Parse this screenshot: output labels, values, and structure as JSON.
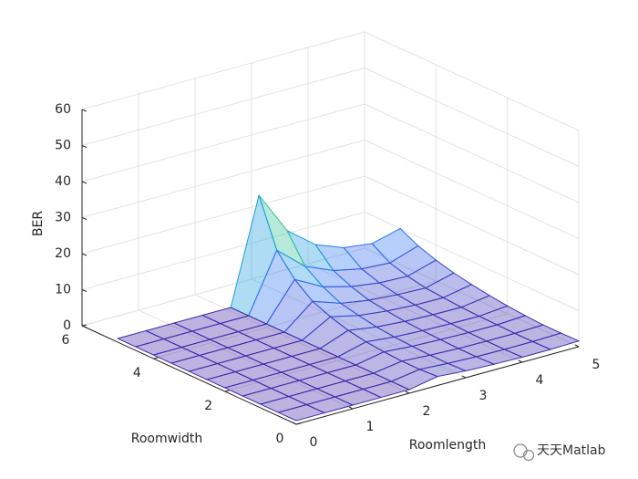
{
  "chart_data": {
    "type": "mesh",
    "xlabel": "Roomlength",
    "ylabel": "Roomwidth",
    "zlabel": "BER",
    "x": [
      0,
      0.5,
      1,
      1.5,
      2,
      2.5,
      3,
      3.5,
      4,
      4.5,
      5
    ],
    "y": [
      0,
      0.5,
      1,
      1.5,
      2,
      2.5,
      3,
      3.5,
      4,
      4.5,
      5
    ],
    "z": [
      [
        1,
        1,
        1,
        1,
        1,
        2.5,
        1.9,
        1.6,
        1.4,
        1.4,
        1.6
      ],
      [
        1,
        1,
        1,
        1,
        1,
        2.2,
        1.7,
        1.4,
        1.3,
        1.3,
        1.5
      ],
      [
        1,
        1,
        1,
        1,
        1,
        2.2,
        1.7,
        1.4,
        1.3,
        1.3,
        1.5
      ],
      [
        1,
        1,
        1,
        1,
        1,
        2.5,
        1.9,
        1.6,
        1.4,
        1.4,
        1.8
      ],
      [
        1,
        1,
        1,
        1,
        1,
        3.0,
        2.2,
        1.8,
        1.6,
        1.5,
        2.2
      ],
      [
        1,
        1,
        1,
        1,
        1,
        3.9,
        2.7,
        2.1,
        1.8,
        1.7,
        2.8
      ],
      [
        1,
        1,
        1,
        1,
        1,
        5.4,
        3.6,
        2.7,
        2.2,
        2.1,
        3.6
      ],
      [
        1,
        1,
        1,
        1,
        1,
        7.4,
        4.7,
        3.4,
        2.8,
        2.5,
        4.5
      ],
      [
        1,
        1,
        1,
        1,
        1,
        11.2,
        7.0,
        4.9,
        3.8,
        3.5,
        5.8
      ],
      [
        1,
        1,
        1,
        1,
        1,
        17.0,
        10.4,
        7.1,
        5.4,
        4.9,
        7.5
      ],
      [
        1,
        1,
        1,
        1,
        1,
        30,
        18,
        12,
        9,
        8,
        10
      ]
    ],
    "xlim": [
      0,
      5
    ],
    "ylim": [
      0,
      6
    ],
    "zlim": [
      0,
      60
    ],
    "xticks": [
      0,
      1,
      2,
      3,
      4,
      5
    ],
    "yticks": [
      0,
      2,
      4,
      6
    ],
    "zticks": [
      0,
      10,
      20,
      30,
      40,
      50,
      60
    ],
    "grid": true,
    "colormap": "parula",
    "watermark": "天天Matlab"
  }
}
